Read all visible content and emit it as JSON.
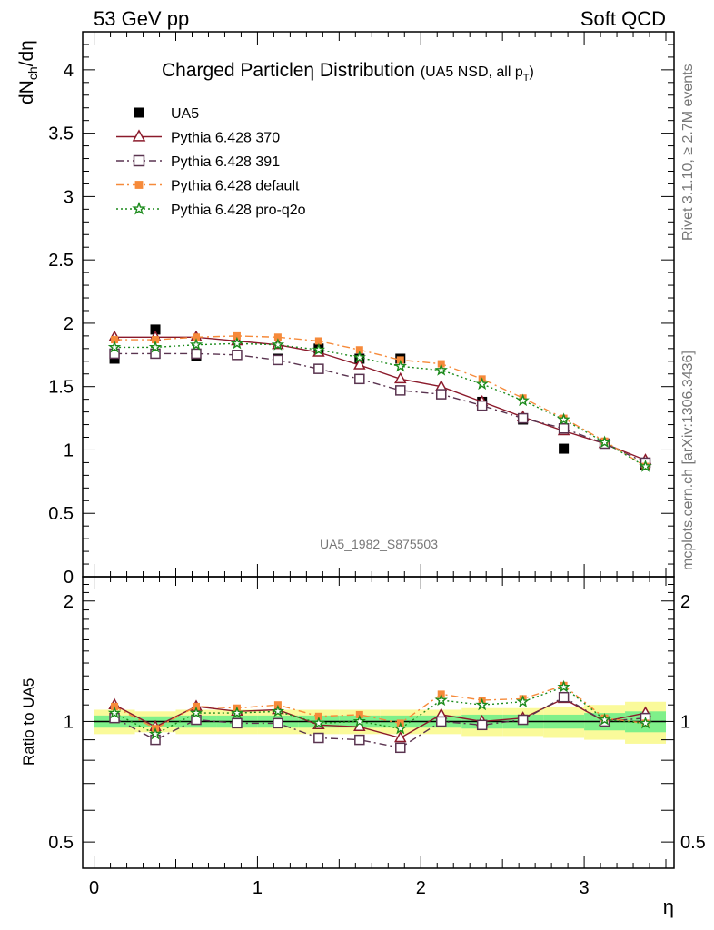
{
  "header": {
    "left": "53 GeV pp",
    "right": "Soft QCD"
  },
  "side": {
    "rivet": "Rivet 3.1.10, ≥ 2.7M events",
    "mcplots": "mcplots.cern.ch [arXiv:1306.3436]"
  },
  "plot_title": {
    "main": "Charged Particleη Distribution",
    "sub": "(UA5 NSD, all p",
    "sub_sub": "T",
    "sub_end": ")"
  },
  "watermark": "UA5_1982_S875503",
  "colors": {
    "data": "#000000",
    "p370": "#8b1a2b",
    "p391": "#5a3450",
    "pdefault": "#f68a3a",
    "pq2o": "#1b8a1b",
    "band_inner": "#7ff08a",
    "band_outer": "#fafa9a"
  },
  "chart_data": [
    {
      "type": "scatter",
      "panel": "main",
      "ylabel": "dNch/dη",
      "ylim": [
        0,
        4.3
      ],
      "xlim": [
        -0.07,
        3.55
      ],
      "y_ticks": [
        "0",
        "0.5",
        "1",
        "1.5",
        "2",
        "2.5",
        "3",
        "3.5",
        "4"
      ],
      "x": [
        0.125,
        0.375,
        0.625,
        0.875,
        1.125,
        1.375,
        1.625,
        1.875,
        2.125,
        2.375,
        2.625,
        2.875,
        3.125,
        3.375
      ],
      "series": [
        {
          "name": "UA5",
          "marker": "square-filled",
          "line": "none",
          "values": [
            1.72,
            1.95,
            1.74,
            1.75,
            1.72,
            1.8,
            1.72,
            1.72,
            1.44,
            1.38,
            1.24,
            1.01,
            1.05,
            0.88
          ]
        },
        {
          "name": "Pythia 6.428 370",
          "marker": "triangle-open",
          "line": "solid",
          "values": [
            1.89,
            1.89,
            1.89,
            1.86,
            1.83,
            1.77,
            1.67,
            1.56,
            1.5,
            1.38,
            1.26,
            1.15,
            1.05,
            0.92
          ]
        },
        {
          "name": "Pythia 6.428 391",
          "marker": "square-open",
          "line": "dashdot",
          "values": [
            1.76,
            1.76,
            1.76,
            1.75,
            1.71,
            1.64,
            1.56,
            1.47,
            1.44,
            1.35,
            1.25,
            1.17,
            1.05,
            0.9
          ]
        },
        {
          "name": "Pythia 6.428 default",
          "marker": "square-filled",
          "line": "dashdot",
          "values": [
            1.87,
            1.87,
            1.89,
            1.9,
            1.89,
            1.86,
            1.79,
            1.71,
            1.68,
            1.56,
            1.41,
            1.25,
            1.07,
            0.87
          ]
        },
        {
          "name": "Pythia 6.428 pro-q2o",
          "marker": "star",
          "line": "dotted",
          "values": [
            1.81,
            1.81,
            1.83,
            1.84,
            1.83,
            1.79,
            1.73,
            1.66,
            1.63,
            1.52,
            1.39,
            1.24,
            1.06,
            0.87
          ]
        }
      ]
    },
    {
      "type": "scatter",
      "panel": "ratio",
      "ylabel": "Ratio to UA5",
      "xlabel": "η",
      "ylim": [
        0.43,
        2.3
      ],
      "y_scale": "log",
      "y_ticks": [
        "0.5",
        "1",
        "2"
      ],
      "x_ticks": [
        "0",
        "1",
        "2",
        "3"
      ],
      "x": [
        0.125,
        0.375,
        0.625,
        0.875,
        1.125,
        1.375,
        1.625,
        1.875,
        2.125,
        2.375,
        2.625,
        2.875,
        3.125,
        3.375
      ],
      "band_inner": [
        0.035,
        0.03,
        0.035,
        0.035,
        0.035,
        0.035,
        0.035,
        0.035,
        0.035,
        0.04,
        0.04,
        0.04,
        0.05,
        0.06
      ],
      "band_outer": [
        0.07,
        0.06,
        0.07,
        0.07,
        0.07,
        0.07,
        0.07,
        0.07,
        0.07,
        0.08,
        0.08,
        0.09,
        0.1,
        0.12
      ],
      "series": [
        {
          "name": "Pythia 6.428 370",
          "values": [
            1.1,
            0.97,
            1.09,
            1.06,
            1.07,
            0.98,
            0.97,
            0.91,
            1.04,
            1.0,
            1.02,
            1.14,
            1.0,
            1.05
          ]
        },
        {
          "name": "Pythia 6.428 391",
          "values": [
            1.02,
            0.9,
            1.01,
            0.99,
            0.99,
            0.91,
            0.9,
            0.86,
            1.0,
            0.98,
            1.01,
            1.15,
            1.0,
            1.02
          ]
        },
        {
          "name": "Pythia 6.428 default",
          "values": [
            1.09,
            0.96,
            1.09,
            1.08,
            1.1,
            1.03,
            1.04,
            0.99,
            1.17,
            1.13,
            1.14,
            1.23,
            1.02,
            0.99
          ]
        },
        {
          "name": "Pythia 6.428 pro-q2o",
          "values": [
            1.05,
            0.93,
            1.05,
            1.05,
            1.06,
            0.99,
            1.0,
            0.96,
            1.13,
            1.1,
            1.12,
            1.22,
            1.01,
            0.99
          ]
        }
      ]
    }
  ]
}
